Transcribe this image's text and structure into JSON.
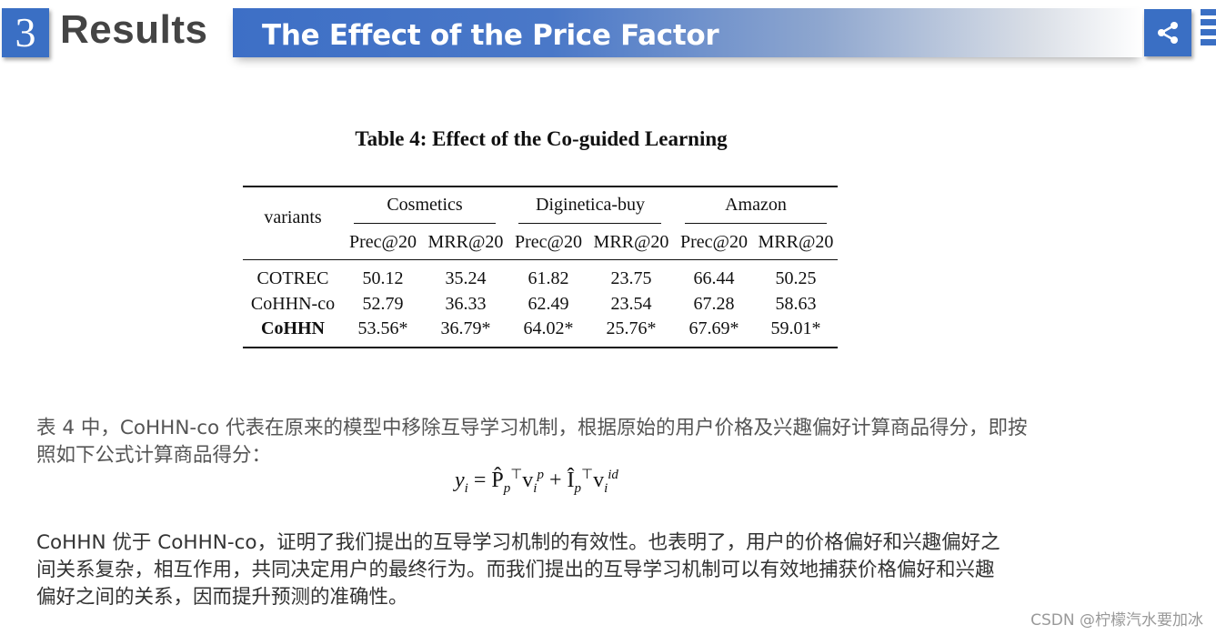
{
  "header": {
    "section_number": "3",
    "section_title": "Results",
    "banner_title": "The Effect of the Price Factor"
  },
  "icons": {
    "share": "share-icon",
    "menu": "menu-icon"
  },
  "colors": {
    "accent": "#3a6fc4"
  },
  "table": {
    "caption": "Table 4: Effect of the Co-guided Learning",
    "row_header": "variants",
    "groups": [
      "Cosmetics",
      "Diginetica-buy",
      "Amazon"
    ],
    "metrics": [
      "Prec@20",
      "MRR@20",
      "Prec@20",
      "MRR@20",
      "Prec@20",
      "MRR@20"
    ],
    "rows": [
      {
        "name": "COTREC",
        "values": [
          "50.12",
          "35.24",
          "61.82",
          "23.75",
          "66.44",
          "50.25"
        ]
      },
      {
        "name": "CoHHN-co",
        "values": [
          "52.79",
          "36.33",
          "62.49",
          "23.54",
          "67.28",
          "58.63"
        ]
      },
      {
        "name": "CoHHN",
        "values": [
          "53.56*",
          "36.79*",
          "64.02*",
          "25.76*",
          "67.69*",
          "59.01*"
        ]
      }
    ]
  },
  "paragraph1": {
    "line1": "表 4 中，CoHHN-co 代表在原来的模型中移除互导学习机制，根据原始的用户价格及兴趣偏好计算商品得分，即按",
    "line2": "照如下公式计算商品得分："
  },
  "paragraph2": {
    "line1": "CoHHN 优于 CoHHN-co，证明了我们提出的互导学习机制的有效性。也表明了，用户的价格偏好和兴趣偏好之",
    "line2": "间关系复杂，相互作用，共同决定用户的最终行为。而我们提出的互导学习机制可以有效地捕获价格偏好和兴趣",
    "line3": "偏好之间的关系，因而提升预测的准确性。"
  },
  "watermark": "CSDN @柠檬汽水要加冰"
}
